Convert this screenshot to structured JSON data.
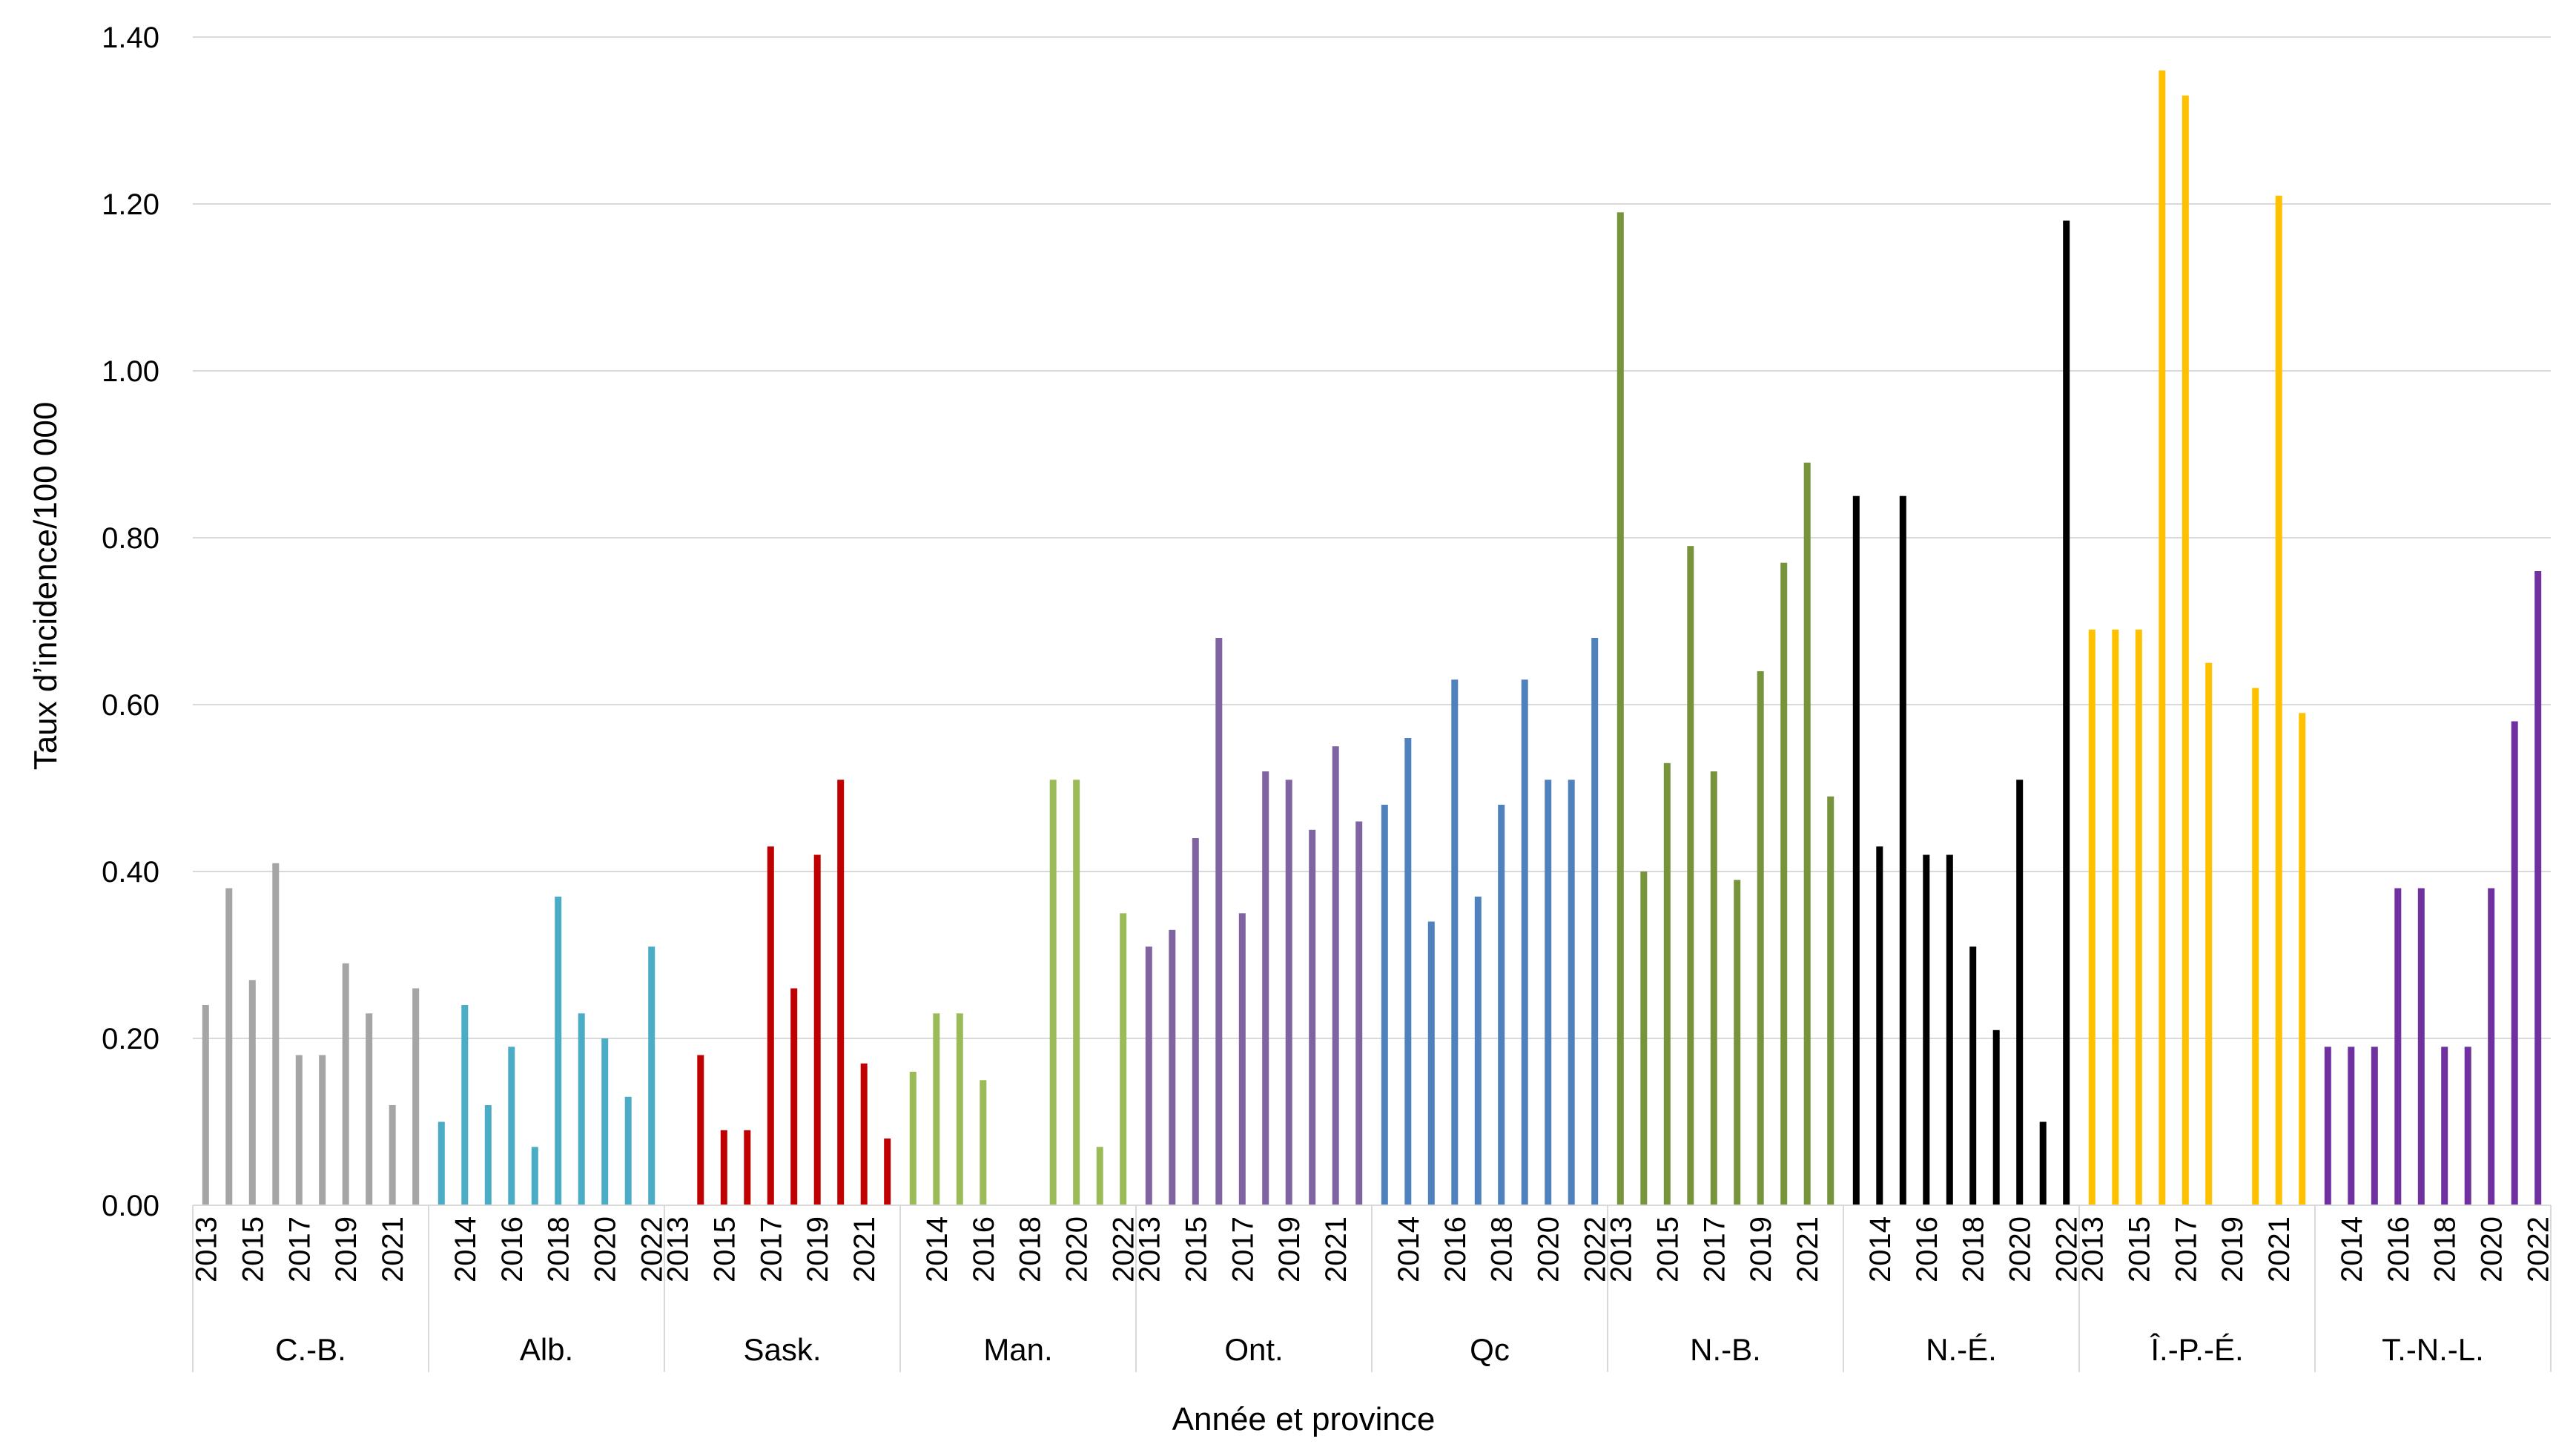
{
  "chart_data": {
    "type": "bar",
    "xlabel": "Année et province",
    "ylabel": "Taux d’incidence/100 000",
    "ylim": [
      0,
      1.4
    ],
    "yticks": [
      "0.00",
      "0.20",
      "0.40",
      "0.60",
      "0.80",
      "1.00",
      "1.20",
      "1.40"
    ],
    "grid": true,
    "legend": "none",
    "groups": [
      {
        "name": "C.-B.",
        "color": "#a5a5a5",
        "year_labels": [
          "2013",
          "2015",
          "2017",
          "2019",
          "2021"
        ],
        "years": [
          2013,
          2014,
          2015,
          2016,
          2017,
          2018,
          2019,
          2020,
          2021,
          2022
        ],
        "values": [
          0.24,
          0.38,
          0.27,
          0.41,
          0.18,
          0.18,
          0.29,
          0.23,
          0.12,
          0.26
        ]
      },
      {
        "name": "Alb.",
        "color": "#4bacc6",
        "year_labels": [
          "2014",
          "2016",
          "2018",
          "2020",
          "2022"
        ],
        "years": [
          2013,
          2014,
          2015,
          2016,
          2017,
          2018,
          2019,
          2020,
          2021,
          2022
        ],
        "values": [
          0.1,
          0.24,
          0.12,
          0.19,
          0.07,
          0.37,
          0.23,
          0.2,
          0.13,
          0.31
        ]
      },
      {
        "name": "Sask.",
        "color": "#c00000",
        "year_labels": [
          "2013",
          "2015",
          "2017",
          "2019",
          "2021"
        ],
        "years": [
          2013,
          2014,
          2015,
          2016,
          2017,
          2018,
          2019,
          2020,
          2021,
          2022
        ],
        "values": [
          0,
          0.18,
          0.09,
          0.09,
          0.43,
          0.26,
          0.42,
          0.51,
          0.17,
          0.08
        ]
      },
      {
        "name": "Man.",
        "color": "#9bbb59",
        "year_labels": [
          "2014",
          "2016",
          "2018",
          "2020",
          "2022"
        ],
        "years": [
          2013,
          2014,
          2015,
          2016,
          2017,
          2018,
          2019,
          2020,
          2021,
          2022
        ],
        "values": [
          0.16,
          0.23,
          0.23,
          0.15,
          0,
          0,
          0.51,
          0.51,
          0.07,
          0.35
        ]
      },
      {
        "name": "Ont.",
        "color": "#8064a2",
        "year_labels": [
          "2013",
          "2015",
          "2017",
          "2019",
          "2021"
        ],
        "years": [
          2013,
          2014,
          2015,
          2016,
          2017,
          2018,
          2019,
          2020,
          2021,
          2022
        ],
        "values": [
          0.31,
          0.33,
          0.44,
          0.68,
          0.35,
          0.52,
          0.51,
          0.45,
          0.55,
          0.46
        ]
      },
      {
        "name": "Qc",
        "color": "#4f81bd",
        "year_labels": [
          "2014",
          "2016",
          "2018",
          "2020",
          "2022"
        ],
        "years": [
          2013,
          2014,
          2015,
          2016,
          2017,
          2018,
          2019,
          2020,
          2021,
          2022
        ],
        "values": [
          0.48,
          0.56,
          0.34,
          0.63,
          0.37,
          0.48,
          0.63,
          0.51,
          0.51,
          0.68
        ]
      },
      {
        "name": "N.-B.",
        "color": "#77933c",
        "year_labels": [
          "2013",
          "2015",
          "2017",
          "2019",
          "2021"
        ],
        "years": [
          2013,
          2014,
          2015,
          2016,
          2017,
          2018,
          2019,
          2020,
          2021,
          2022
        ],
        "values": [
          1.19,
          0.4,
          0.53,
          0.79,
          0.52,
          0.39,
          0.64,
          0.77,
          0.89,
          0.49
        ]
      },
      {
        "name": "N.-É.",
        "color": "#000000",
        "year_labels": [
          "2014",
          "2016",
          "2018",
          "2020",
          "2022"
        ],
        "years": [
          2013,
          2014,
          2015,
          2016,
          2017,
          2018,
          2019,
          2020,
          2021,
          2022
        ],
        "values": [
          0.85,
          0.43,
          0.85,
          0.42,
          0.42,
          0.31,
          0.21,
          0.51,
          0.1,
          1.18
        ]
      },
      {
        "name": "Î.-P.-É.",
        "color": "#ffc000",
        "year_labels": [
          "2013",
          "2015",
          "2017",
          "2019",
          "2021"
        ],
        "years": [
          2013,
          2014,
          2015,
          2016,
          2017,
          2018,
          2019,
          2020,
          2021,
          2022
        ],
        "values": [
          0.69,
          0.69,
          0.69,
          1.36,
          1.33,
          0.65,
          0,
          0.62,
          1.21,
          0.59
        ]
      },
      {
        "name": "T.-N.-L.",
        "color": "#7030a0",
        "year_labels": [
          "2014",
          "2016",
          "2018",
          "2020",
          "2022"
        ],
        "years": [
          2013,
          2014,
          2015,
          2016,
          2017,
          2018,
          2019,
          2020,
          2021,
          2022
        ],
        "values": [
          0.19,
          0.19,
          0.19,
          0.38,
          0.38,
          0.19,
          0.19,
          0.38,
          0.58,
          0.76
        ]
      }
    ]
  }
}
